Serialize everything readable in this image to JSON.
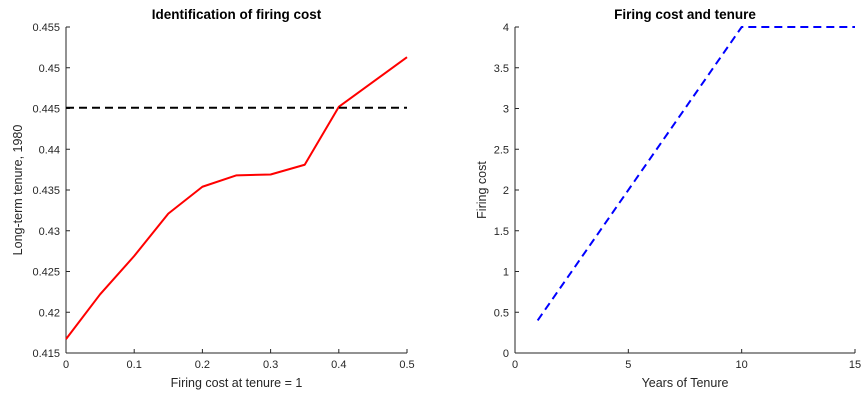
{
  "chart_data": [
    {
      "type": "line",
      "title": "Identification of firing cost",
      "xlabel": "Firing cost at tenure = 1",
      "ylabel": "Long-term tenure, 1980",
      "xlim": [
        0,
        0.5
      ],
      "ylim": [
        0.415,
        0.455
      ],
      "xticks": [
        0,
        0.1,
        0.2,
        0.3,
        0.4,
        0.5
      ],
      "xtick_labels": [
        "0",
        "0.1",
        "0.2",
        "0.3",
        "0.4",
        "0.5"
      ],
      "yticks": [
        0.415,
        0.42,
        0.425,
        0.43,
        0.435,
        0.44,
        0.445,
        0.45,
        0.455
      ],
      "ytick_labels": [
        "0.415",
        "0.42",
        "0.425",
        "0.43",
        "0.435",
        "0.44",
        "0.445",
        "0.45",
        "0.455"
      ],
      "grid": false,
      "series": [
        {
          "style": "solid",
          "color": "#ff0000",
          "x": [
            0,
            0.05,
            0.1,
            0.15,
            0.2,
            0.25,
            0.3,
            0.35,
            0.4,
            0.5
          ],
          "y": [
            0.4167,
            0.4222,
            0.4269,
            0.4321,
            0.4354,
            0.4368,
            0.4369,
            0.4381,
            0.4452,
            0.4513
          ]
        },
        {
          "style": "dashed",
          "color": "#000000",
          "x": [
            0,
            0.5
          ],
          "y": [
            0.4451,
            0.4451
          ]
        }
      ]
    },
    {
      "type": "line",
      "title": "Firing cost and tenure",
      "xlabel": "Years of Tenure",
      "ylabel": "Firing cost",
      "xlim": [
        0,
        15
      ],
      "ylim": [
        0,
        4
      ],
      "xticks": [
        0,
        5,
        10,
        15
      ],
      "xtick_labels": [
        "0",
        "5",
        "10",
        "15"
      ],
      "yticks": [
        0,
        0.5,
        1,
        1.5,
        2,
        2.5,
        3,
        3.5,
        4
      ],
      "ytick_labels": [
        "0",
        "0.5",
        "1",
        "1.5",
        "2",
        "2.5",
        "3",
        "3.5",
        "4"
      ],
      "grid": false,
      "series": [
        {
          "style": "dashed",
          "color": "#0000ff",
          "x": [
            1,
            10,
            15
          ],
          "y": [
            0.4,
            4,
            4
          ]
        }
      ]
    }
  ]
}
